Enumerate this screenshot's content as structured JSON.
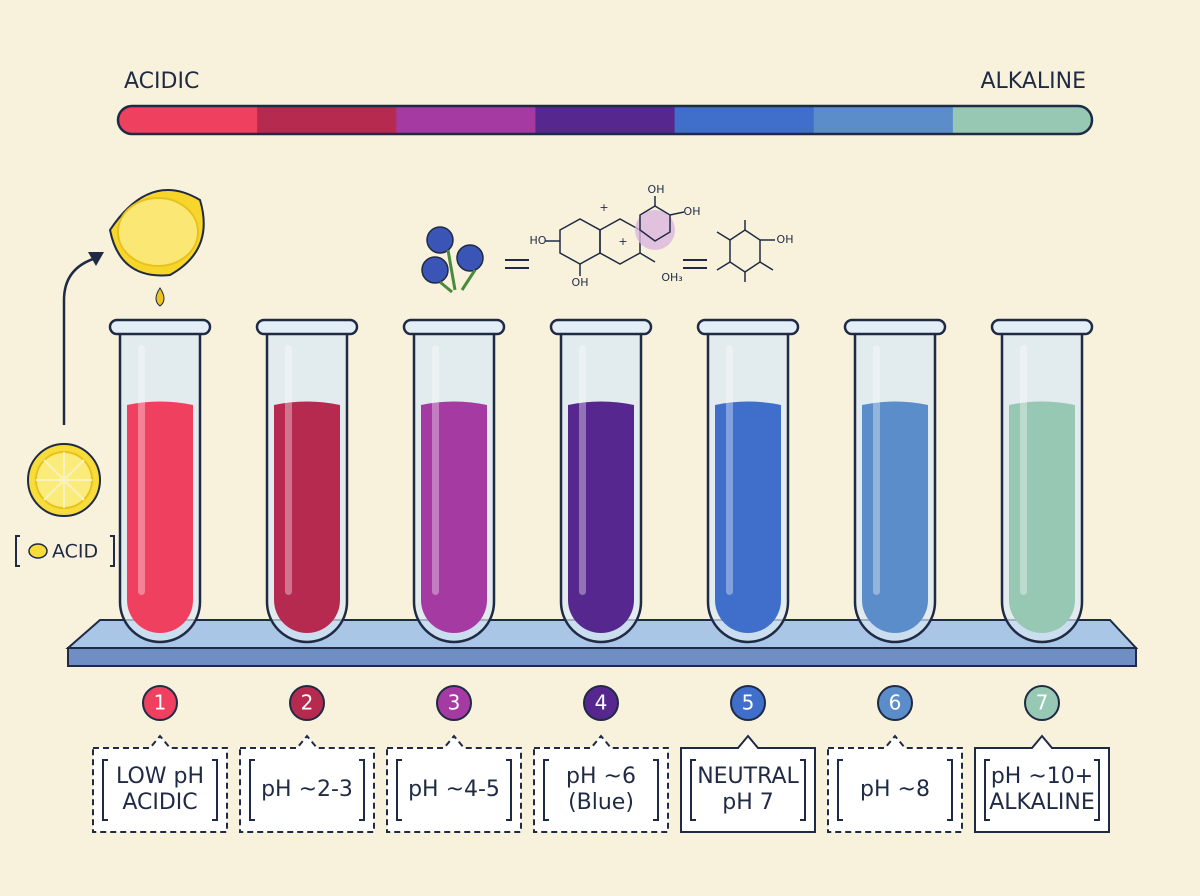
{
  "scale": {
    "left": "ACIDIC",
    "right": "ALKALINE"
  },
  "acid_tag": "ACID",
  "molecule": {
    "labels": [
      "HO",
      "OH",
      "OH",
      "OH",
      "OH₃",
      "+",
      "+",
      "OH"
    ]
  },
  "tubes": [
    {
      "number": 1,
      "color": "#f0405f",
      "border": "dashed",
      "label": [
        "LOW pH",
        "ACIDIC"
      ]
    },
    {
      "number": 2,
      "color": "#b72a50",
      "border": "dashed",
      "label": [
        "pH ~2-3"
      ]
    },
    {
      "number": 3,
      "color": "#a43aa2",
      "border": "dashed",
      "label": [
        "pH ~4-5"
      ]
    },
    {
      "number": 4,
      "color": "#56288f",
      "border": "dashed",
      "label": [
        "pH ~6",
        "(Blue)"
      ]
    },
    {
      "number": 5,
      "color": "#3f6ecb",
      "border": "solid",
      "label": [
        "NEUTRAL",
        "pH 7"
      ]
    },
    {
      "number": 6,
      "color": "#5b8dca",
      "border": "dashed",
      "label": [
        "pH ~8"
      ]
    },
    {
      "number": 7,
      "color": "#96c8b4",
      "border": "solid",
      "label": [
        "pH ~10+",
        "ALKALINE"
      ]
    }
  ]
}
